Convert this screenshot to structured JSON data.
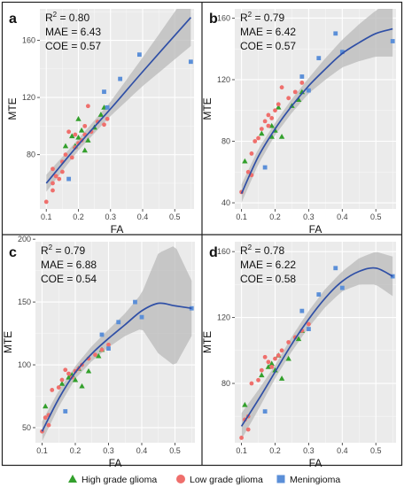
{
  "chart_data": [
    {
      "panel_label": "a",
      "type": "scatter",
      "xlabel": "FA",
      "ylabel": "MTE",
      "xlim": [
        0.08,
        0.56
      ],
      "ylim": [
        42,
        182
      ],
      "xticks": [
        0.1,
        0.2,
        0.3,
        0.4,
        0.5
      ],
      "yticks": [
        80,
        120,
        160
      ],
      "grid": true,
      "stats": [
        "R² = 0.80",
        "MAE = 6.43",
        "COE = 0.57"
      ],
      "series": [
        {
          "name": "High grade glioma",
          "points": [
            [
              0.16,
              86
            ],
            [
              0.19,
              86
            ],
            [
              0.2,
              92
            ],
            [
              0.21,
              97
            ],
            [
              0.22,
              83
            ],
            [
              0.23,
              90
            ],
            [
              0.25,
              99
            ],
            [
              0.27,
              108
            ],
            [
              0.28,
              113
            ],
            [
              0.18,
              93
            ],
            [
              0.2,
              105
            ]
          ]
        },
        {
          "name": "Low grade glioma",
          "points": [
            [
              0.1,
              47
            ],
            [
              0.12,
              55
            ],
            [
              0.12,
              60
            ],
            [
              0.13,
              65
            ],
            [
              0.14,
              63
            ],
            [
              0.15,
              68
            ],
            [
              0.15,
              75
            ],
            [
              0.16,
              80
            ],
            [
              0.17,
              96
            ],
            [
              0.18,
              78
            ],
            [
              0.19,
              85
            ],
            [
              0.2,
              88
            ],
            [
              0.21,
              90
            ],
            [
              0.22,
              94
            ],
            [
              0.22,
              100
            ],
            [
              0.23,
              114
            ],
            [
              0.24,
              96
            ],
            [
              0.26,
              103
            ],
            [
              0.28,
              101
            ],
            [
              0.29,
              105
            ],
            [
              0.19,
              94
            ],
            [
              0.12,
              70
            ]
          ]
        },
        {
          "name": "Meningioma",
          "points": [
            [
              0.17,
              63
            ],
            [
              0.28,
              124
            ],
            [
              0.29,
              113
            ],
            [
              0.33,
              133
            ],
            [
              0.39,
              150
            ],
            [
              0.55,
              145
            ]
          ]
        }
      ],
      "fit": [
        [
          0.1,
          60
        ],
        [
          0.2,
          87
        ],
        [
          0.3,
          112
        ],
        [
          0.4,
          138
        ],
        [
          0.55,
          176
        ]
      ],
      "band": [
        [
          0.1,
          6
        ],
        [
          0.2,
          4
        ],
        [
          0.3,
          5
        ],
        [
          0.4,
          10
        ],
        [
          0.55,
          20
        ]
      ]
    },
    {
      "panel_label": "b",
      "type": "scatter",
      "xlabel": "FA",
      "ylabel": "MTE",
      "xlim": [
        0.08,
        0.56
      ],
      "ylim": [
        36,
        166
      ],
      "xticks": [
        0.1,
        0.2,
        0.3,
        0.4,
        0.5
      ],
      "yticks": [
        40,
        80,
        120,
        160
      ],
      "grid": true,
      "stats": [
        "R² = 0.79",
        "MAE = 6.42",
        "COE = 0.57"
      ],
      "series": [
        {
          "name": "High grade glioma",
          "points": [
            [
              0.11,
              67
            ],
            [
              0.16,
              85
            ],
            [
              0.19,
              83
            ],
            [
              0.2,
              87
            ],
            [
              0.21,
              102
            ],
            [
              0.22,
              83
            ],
            [
              0.25,
              103
            ],
            [
              0.27,
              107
            ],
            [
              0.28,
              112
            ],
            [
              0.19,
              90
            ]
          ]
        },
        {
          "name": "Low grade glioma",
          "points": [
            [
              0.1,
              47
            ],
            [
              0.12,
              60
            ],
            [
              0.13,
              72
            ],
            [
              0.14,
              80
            ],
            [
              0.15,
              82
            ],
            [
              0.16,
              88
            ],
            [
              0.17,
              93
            ],
            [
              0.18,
              97
            ],
            [
              0.19,
              95
            ],
            [
              0.2,
              100
            ],
            [
              0.21,
              104
            ],
            [
              0.22,
              115
            ],
            [
              0.24,
              108
            ],
            [
              0.26,
              112
            ],
            [
              0.28,
              118
            ],
            [
              0.3,
              113
            ],
            [
              0.18,
              90
            ],
            [
              0.13,
              58
            ]
          ]
        },
        {
          "name": "Meningioma",
          "points": [
            [
              0.17,
              63
            ],
            [
              0.28,
              122
            ],
            [
              0.3,
              113
            ],
            [
              0.33,
              134
            ],
            [
              0.38,
              150
            ],
            [
              0.4,
              138
            ],
            [
              0.55,
              145
            ]
          ]
        }
      ],
      "fit": [
        [
          0.1,
          46
        ],
        [
          0.15,
          70
        ],
        [
          0.2,
          88
        ],
        [
          0.25,
          103
        ],
        [
          0.3,
          116
        ],
        [
          0.35,
          127
        ],
        [
          0.4,
          137
        ],
        [
          0.45,
          144
        ],
        [
          0.5,
          150
        ],
        [
          0.55,
          153
        ]
      ],
      "band": [
        [
          0.1,
          6
        ],
        [
          0.2,
          4
        ],
        [
          0.3,
          5
        ],
        [
          0.4,
          9
        ],
        [
          0.55,
          18
        ]
      ]
    },
    {
      "panel_label": "c",
      "type": "scatter",
      "xlabel": "FA",
      "ylabel": "MTE",
      "xlim": [
        0.08,
        0.56
      ],
      "ylim": [
        38,
        198
      ],
      "xticks": [
        0.1,
        0.2,
        0.3,
        0.4,
        0.5
      ],
      "yticks": [
        50,
        100,
        150,
        200
      ],
      "grid": true,
      "stats": [
        "R² = 0.79",
        "MAE = 6.88",
        "COE = 0.54"
      ],
      "series": [
        {
          "name": "High grade glioma",
          "points": [
            [
              0.11,
              67
            ],
            [
              0.16,
              85
            ],
            [
              0.18,
              90
            ],
            [
              0.2,
              88
            ],
            [
              0.21,
              97
            ],
            [
              0.22,
              83
            ],
            [
              0.24,
              95
            ],
            [
              0.27,
              107
            ],
            [
              0.28,
              112
            ],
            [
              0.19,
              92
            ]
          ]
        },
        {
          "name": "Low grade glioma",
          "points": [
            [
              0.1,
              47
            ],
            [
              0.11,
              58
            ],
            [
              0.12,
              60
            ],
            [
              0.13,
              80
            ],
            [
              0.15,
              82
            ],
            [
              0.16,
              88
            ],
            [
              0.17,
              96
            ],
            [
              0.18,
              93
            ],
            [
              0.19,
              90
            ],
            [
              0.2,
              95
            ],
            [
              0.21,
              97
            ],
            [
              0.22,
              100
            ],
            [
              0.24,
              105
            ],
            [
              0.26,
              108
            ],
            [
              0.28,
              112
            ],
            [
              0.3,
              116
            ],
            [
              0.12,
              52
            ]
          ]
        },
        {
          "name": "Meningioma",
          "points": [
            [
              0.17,
              63
            ],
            [
              0.28,
              124
            ],
            [
              0.3,
              113
            ],
            [
              0.33,
              134
            ],
            [
              0.38,
              150
            ],
            [
              0.4,
              138
            ],
            [
              0.55,
              145
            ]
          ]
        }
      ],
      "fit": [
        [
          0.1,
          47
        ],
        [
          0.15,
          73
        ],
        [
          0.2,
          94
        ],
        [
          0.25,
          109
        ],
        [
          0.3,
          121
        ],
        [
          0.35,
          132
        ],
        [
          0.4,
          143
        ],
        [
          0.45,
          149
        ],
        [
          0.5,
          147
        ],
        [
          0.55,
          145
        ]
      ],
      "band": [
        [
          0.1,
          8
        ],
        [
          0.2,
          5
        ],
        [
          0.3,
          7
        ],
        [
          0.35,
          9
        ],
        [
          0.4,
          14
        ],
        [
          0.45,
          40
        ],
        [
          0.5,
          48
        ],
        [
          0.55,
          22
        ]
      ]
    },
    {
      "panel_label": "d",
      "type": "scatter",
      "xlabel": "FA",
      "ylabel": "MTE",
      "xlim": [
        0.08,
        0.56
      ],
      "ylim": [
        44,
        166
      ],
      "xticks": [
        0.1,
        0.2,
        0.3,
        0.4,
        0.5
      ],
      "yticks": [
        80,
        120,
        160
      ],
      "grid": true,
      "stats": [
        "R² = 0.78",
        "MAE = 6.22",
        "COE = 0.58"
      ],
      "series": [
        {
          "name": "High grade glioma",
          "points": [
            [
              0.11,
              67
            ],
            [
              0.16,
              85
            ],
            [
              0.18,
              90
            ],
            [
              0.2,
              88
            ],
            [
              0.21,
              97
            ],
            [
              0.22,
              83
            ],
            [
              0.24,
              95
            ],
            [
              0.27,
              107
            ],
            [
              0.28,
              112
            ],
            [
              0.19,
              92
            ]
          ]
        },
        {
          "name": "Low grade glioma",
          "points": [
            [
              0.1,
              47
            ],
            [
              0.11,
              58
            ],
            [
              0.12,
              60
            ],
            [
              0.13,
              80
            ],
            [
              0.15,
              82
            ],
            [
              0.16,
              88
            ],
            [
              0.17,
              96
            ],
            [
              0.18,
              93
            ],
            [
              0.19,
              90
            ],
            [
              0.2,
              95
            ],
            [
              0.21,
              97
            ],
            [
              0.22,
              100
            ],
            [
              0.24,
              105
            ],
            [
              0.26,
              108
            ],
            [
              0.28,
              112
            ],
            [
              0.3,
              116
            ],
            [
              0.12,
              52
            ]
          ]
        },
        {
          "name": "Meningioma",
          "points": [
            [
              0.17,
              63
            ],
            [
              0.28,
              124
            ],
            [
              0.3,
              113
            ],
            [
              0.33,
              134
            ],
            [
              0.38,
              150
            ],
            [
              0.4,
              138
            ],
            [
              0.55,
              145
            ]
          ]
        }
      ],
      "fit": [
        [
          0.1,
          54
        ],
        [
          0.15,
          70
        ],
        [
          0.2,
          87
        ],
        [
          0.25,
          104
        ],
        [
          0.3,
          119
        ],
        [
          0.35,
          132
        ],
        [
          0.4,
          142
        ],
        [
          0.45,
          148
        ],
        [
          0.5,
          150
        ],
        [
          0.55,
          145
        ]
      ],
      "band": [
        [
          0.1,
          8
        ],
        [
          0.2,
          4
        ],
        [
          0.3,
          5
        ],
        [
          0.4,
          6
        ],
        [
          0.45,
          8
        ],
        [
          0.5,
          10
        ],
        [
          0.55,
          12
        ]
      ]
    }
  ],
  "legend": {
    "items": [
      {
        "label": "High grade glioma",
        "shape": "triangle",
        "color": "#33a02c"
      },
      {
        "label": "Low grade glioma",
        "shape": "circle",
        "color": "#ef6f6c"
      },
      {
        "label": "Meningioma",
        "shape": "square",
        "color": "#5b8fd8"
      }
    ]
  },
  "colors": {
    "fit_line": "#2f4fa6",
    "band": "#b9b9b9",
    "plot_background": "#ebebeb",
    "grid": "#ffffff",
    "frame": "#333333"
  }
}
